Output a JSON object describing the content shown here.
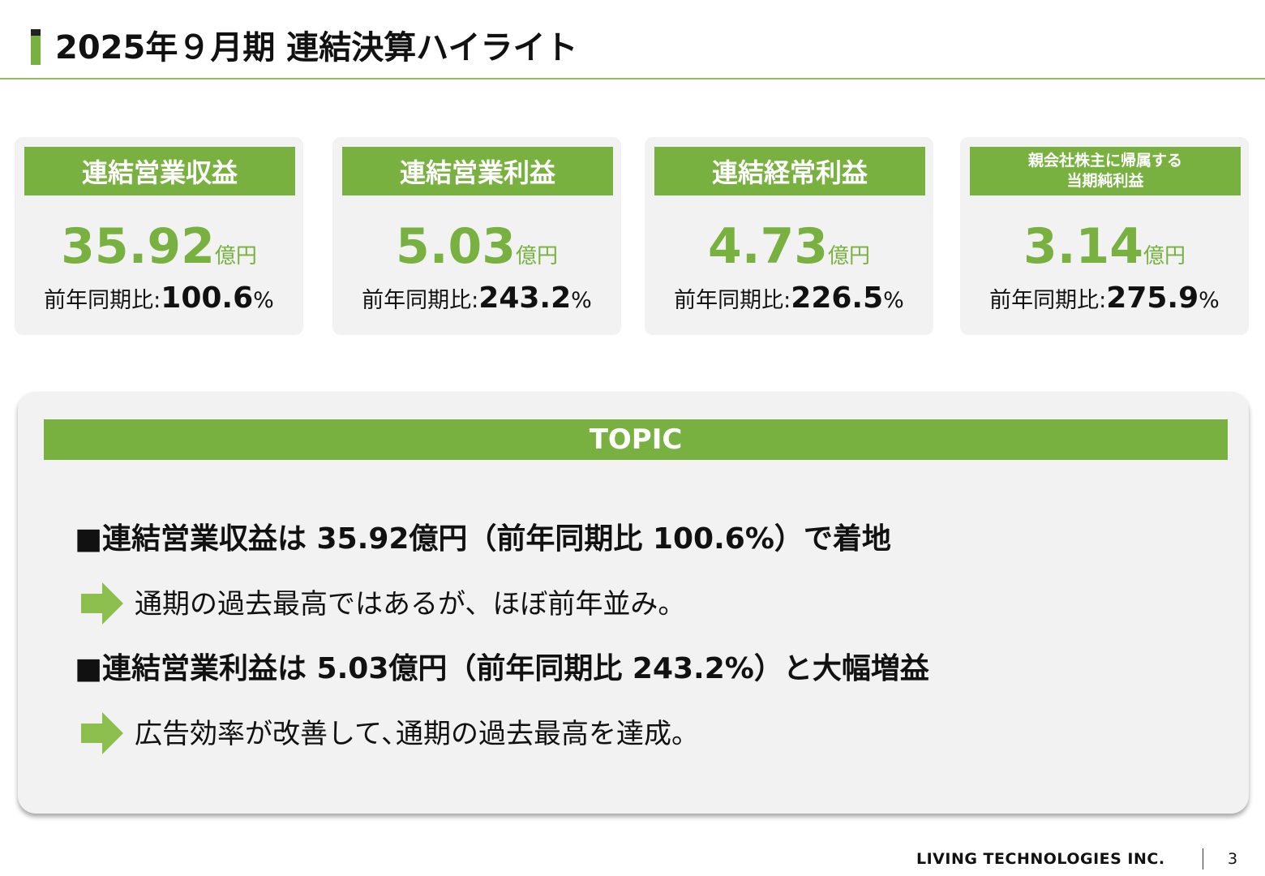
{
  "header": {
    "title": "2025年９月期 連結決算ハイライト"
  },
  "cards": [
    {
      "label": [
        "連結営業収益"
      ],
      "value": "35.92",
      "unit": "億円",
      "yoy_label": "前年同期比:",
      "yoy_value": "100.6",
      "yoy_unit": "%"
    },
    {
      "label": [
        "連結営業利益"
      ],
      "value": "5.03",
      "unit": "億円",
      "yoy_label": "前年同期比:",
      "yoy_value": "243.2",
      "yoy_unit": "%"
    },
    {
      "label": [
        "連結経常利益"
      ],
      "value": "4.73",
      "unit": "億円",
      "yoy_label": "前年同期比:",
      "yoy_value": "226.5",
      "yoy_unit": "%"
    },
    {
      "label": [
        "親会社株主に帰属する",
        "当期純利益"
      ],
      "value": "3.14",
      "unit": "億円",
      "yoy_label": "前年同期比:",
      "yoy_value": "275.9",
      "yoy_unit": "%"
    }
  ],
  "topic": {
    "title": "TOPIC",
    "items": [
      {
        "heading": "■連結営業収益は 35.92億円（前年同期比 100.6%）で着地",
        "detail": "通期の過去最高ではあるが、ほぼ前年並み。"
      },
      {
        "heading": "■連結営業利益は 5.03億円（前年同期比 243.2%）と大幅増益",
        "detail": "広告効率が改善して､通期の過去最高を達成。"
      }
    ]
  },
  "footer": {
    "company": "LIVING TECHNOLOGIES INC.",
    "page": "3"
  }
}
